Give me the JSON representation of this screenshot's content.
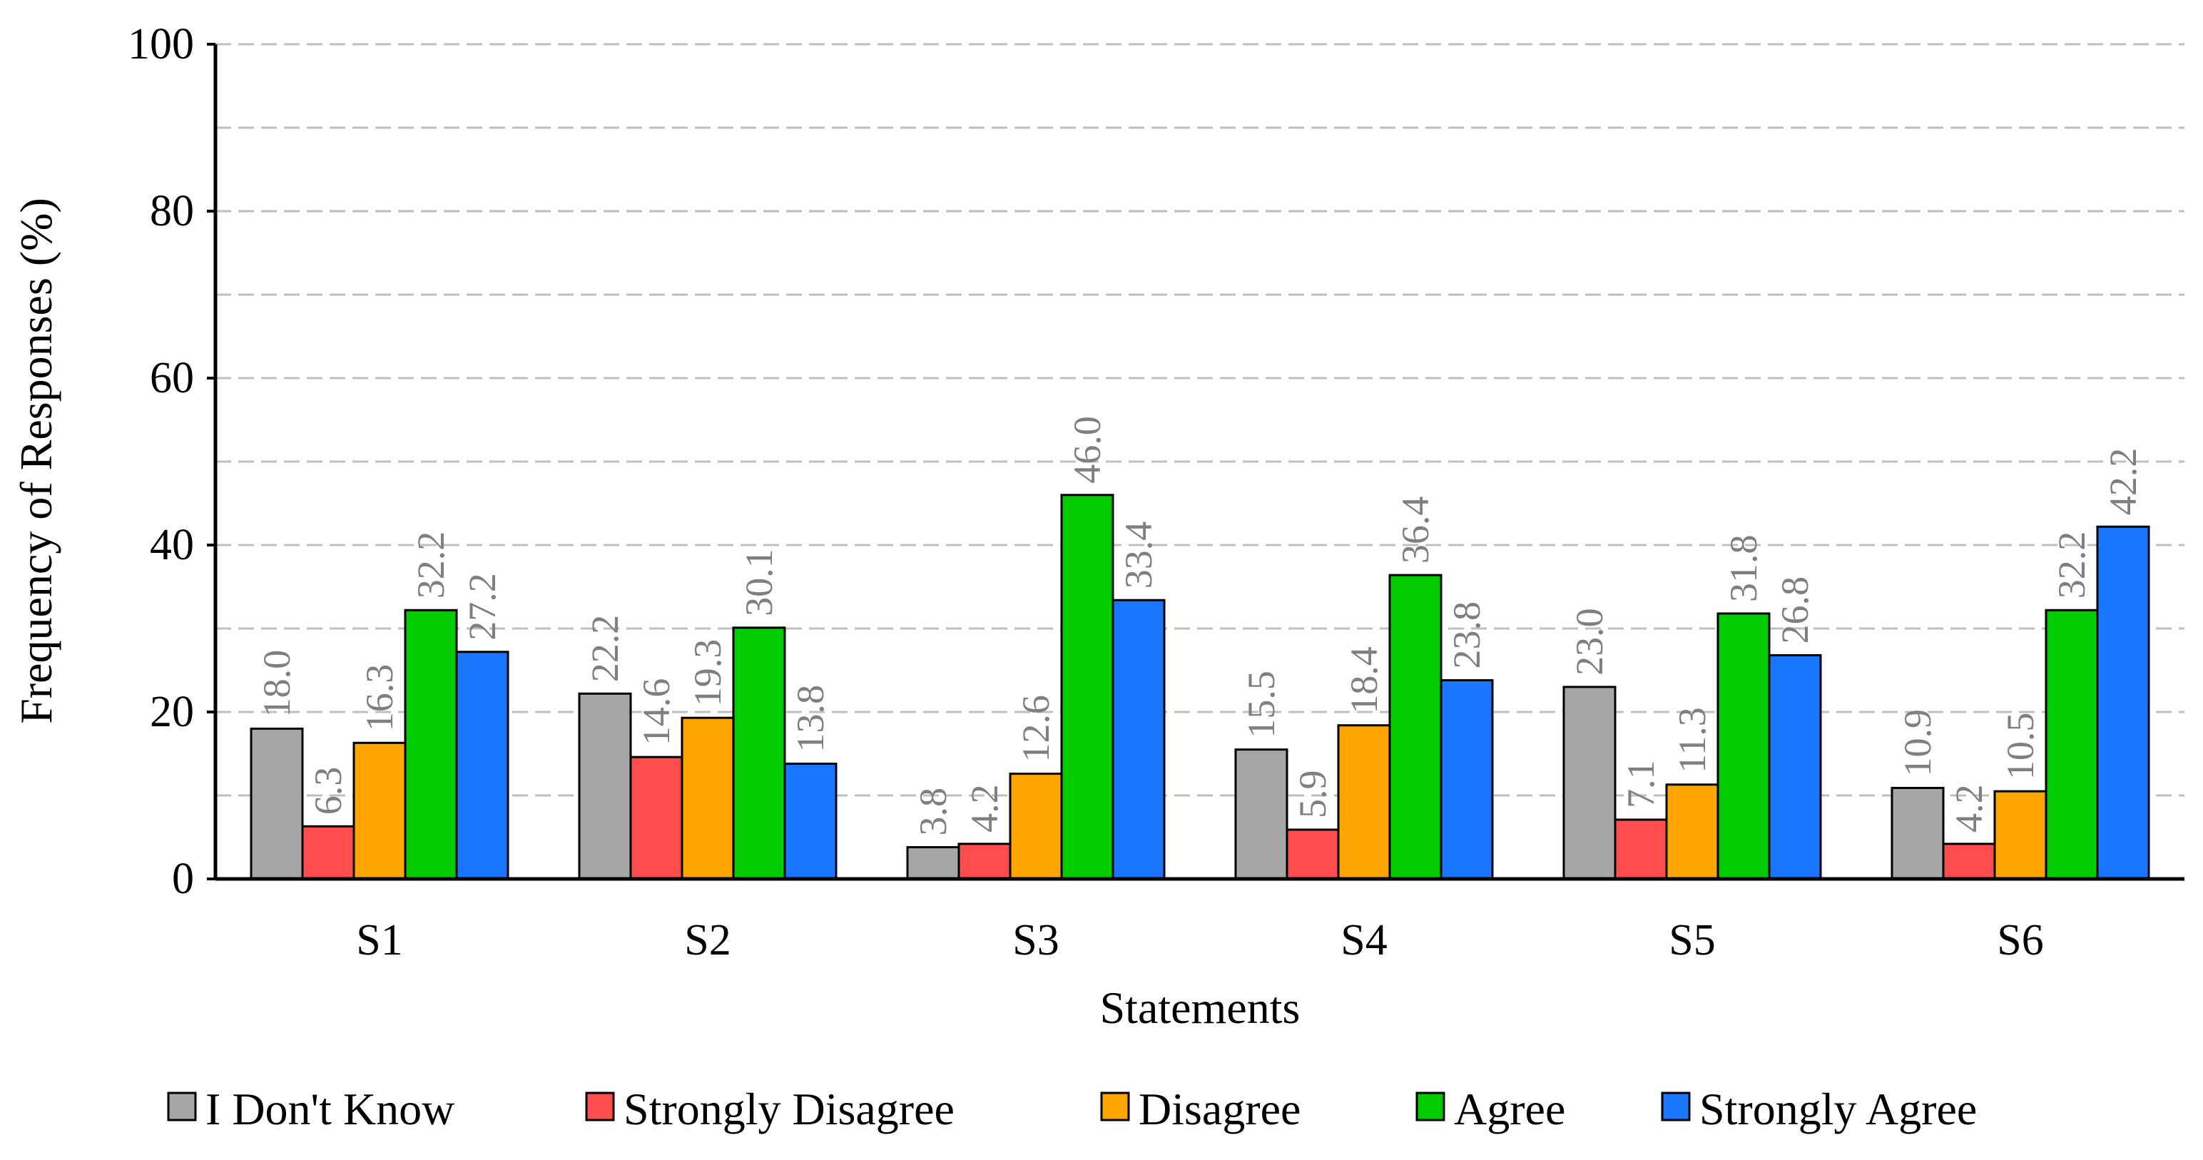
{
  "chart_data": {
    "type": "bar",
    "categories": [
      "S1",
      "S2",
      "S3",
      "S4",
      "S5",
      "S6"
    ],
    "series": [
      {
        "name": "I Don't Know",
        "color": "#a6a6a6",
        "values": [
          18.0,
          22.2,
          3.8,
          15.5,
          23.0,
          10.9
        ]
      },
      {
        "name": "Strongly Disagree",
        "color": "#ff4d4d",
        "values": [
          6.3,
          14.6,
          4.2,
          5.9,
          7.1,
          4.2
        ]
      },
      {
        "name": "Disagree",
        "color": "#ffa500",
        "values": [
          16.3,
          19.3,
          12.6,
          18.4,
          11.3,
          10.5
        ]
      },
      {
        "name": "Agree",
        "color": "#00cc00",
        "values": [
          32.2,
          30.1,
          46.0,
          36.4,
          31.8,
          32.2
        ]
      },
      {
        "name": "Strongly Agree",
        "color": "#1a75ff",
        "values": [
          27.2,
          13.8,
          33.4,
          23.8,
          26.8,
          42.2
        ]
      }
    ],
    "data_labels": [
      [
        "18.0",
        "22.2",
        "3.8",
        "15.5",
        "23.0",
        "10.9"
      ],
      [
        "6.3",
        "14.6",
        "4.2",
        "5.9",
        "7.1",
        "4.2"
      ],
      [
        "16.3",
        "19.3",
        "12.6",
        "18.4",
        "11.3",
        "10.5"
      ],
      [
        "32.2",
        "30.1",
        "46.0",
        "36.4",
        "31.8",
        "32.2"
      ],
      [
        "27.2",
        "13.8",
        "33.4",
        "23.8",
        "26.8",
        "42.2"
      ]
    ],
    "xlabel": "Statements",
    "ylabel": "Frequency of Responses (%)",
    "ylim": [
      0,
      100
    ],
    "yticks": [
      0,
      20,
      40,
      60,
      80,
      100
    ],
    "ytick_labels": [
      "0",
      "20",
      "40",
      "60",
      "80",
      "100"
    ],
    "grid": "dashed horizontal every 10",
    "legend_position": "bottom"
  }
}
